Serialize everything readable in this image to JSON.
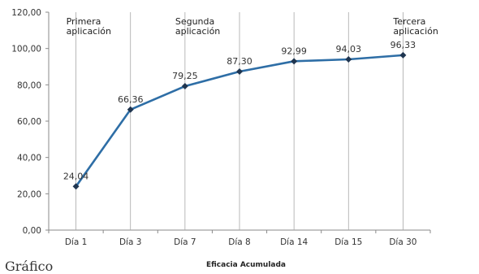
{
  "chart_data": {
    "type": "line",
    "categories": [
      "Día 1",
      "Día 3",
      "Día 7",
      "Día 8",
      "Día 14",
      "Día 15",
      "Día 30"
    ],
    "series": [
      {
        "values": [
          24.04,
          66.36,
          79.25,
          87.3,
          92.99,
          94.03,
          96.33
        ]
      }
    ],
    "data_labels": [
      "24,04",
      "66,36",
      "79,25",
      "87,30",
      "92,99",
      "94,03",
      "96,33"
    ],
    "y_ticks": [
      "0,00",
      "20,00",
      "40,00",
      "60,00",
      "80,00",
      "100,00",
      "120,00"
    ],
    "ylim": [
      0,
      120
    ],
    "xlabel": "Eficacia Acumulada",
    "grid": "vertical lines at categories",
    "line_color": "#2E6EA6",
    "marker_color": "#1F3550",
    "annotations": [
      {
        "lines": [
          "Primera",
          "aplicación"
        ],
        "category": "Día 1"
      },
      {
        "lines": [
          "Segunda",
          "aplicación"
        ],
        "category": "Día 7"
      },
      {
        "lines": [
          "Tercera",
          "aplicación"
        ],
        "category": "Día 30"
      }
    ]
  },
  "caption_partial": "Gráfico"
}
